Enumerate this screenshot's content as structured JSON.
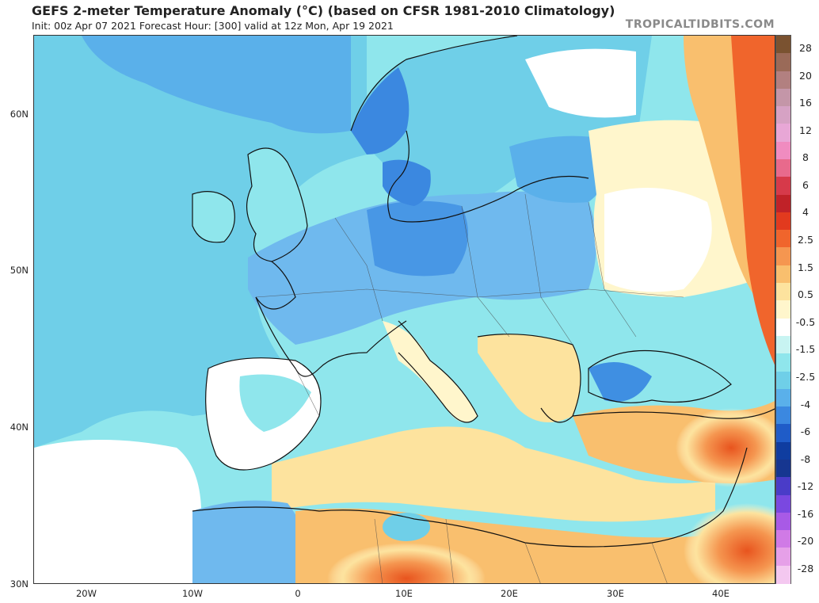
{
  "header": {
    "title": "GEFS 2-meter Temperature Anomaly (°C) (based on CFSR 1981-2010 Climatology)",
    "subtitle": "Init: 00z Apr 07 2021   Forecast Hour: [300]   valid at 12z Mon, Apr 19 2021",
    "brand": "TROPICALTIDBITS.COM"
  },
  "map": {
    "lat_labels": [
      "60N",
      "50N",
      "40N",
      "30N"
    ],
    "lon_labels": [
      "20W",
      "10W",
      "0",
      "10E",
      "20E",
      "30E",
      "40E"
    ],
    "lon_range": [
      -25,
      45
    ],
    "lat_range": [
      30,
      65
    ],
    "ocean_anomaly_color": "#8fe6ec",
    "land_color": "#ffffff"
  },
  "colorbar": {
    "labels": [
      "28",
      "20",
      "16",
      "12",
      "8",
      "6",
      "4",
      "2.5",
      "1.5",
      "0.5",
      "-0.5",
      "-1.5",
      "-2.5",
      "-4",
      "-6",
      "-8",
      "-12",
      "-16",
      "-20",
      "-28"
    ],
    "colors": [
      "#7a5230",
      "#9a6a58",
      "#b28080",
      "#c496a8",
      "#d6a2c4",
      "#e8a7d6",
      "#f08cc0",
      "#e86a8c",
      "#d63a4a",
      "#c02228",
      "#e23a1e",
      "#f0652c",
      "#f59650",
      "#f9bf6e",
      "#fde39e",
      "#fff6cc",
      "#ffffff",
      "#c8f4f2",
      "#8fe6ec",
      "#6fcfe8",
      "#5ab0ea",
      "#3b88e0",
      "#1f5cc8",
      "#0f3da0",
      "#163690",
      "#4a3cc8",
      "#7a48e0",
      "#a85ae6",
      "#d07ae6",
      "#e6a0e8",
      "#f4c8f0"
    ]
  }
}
